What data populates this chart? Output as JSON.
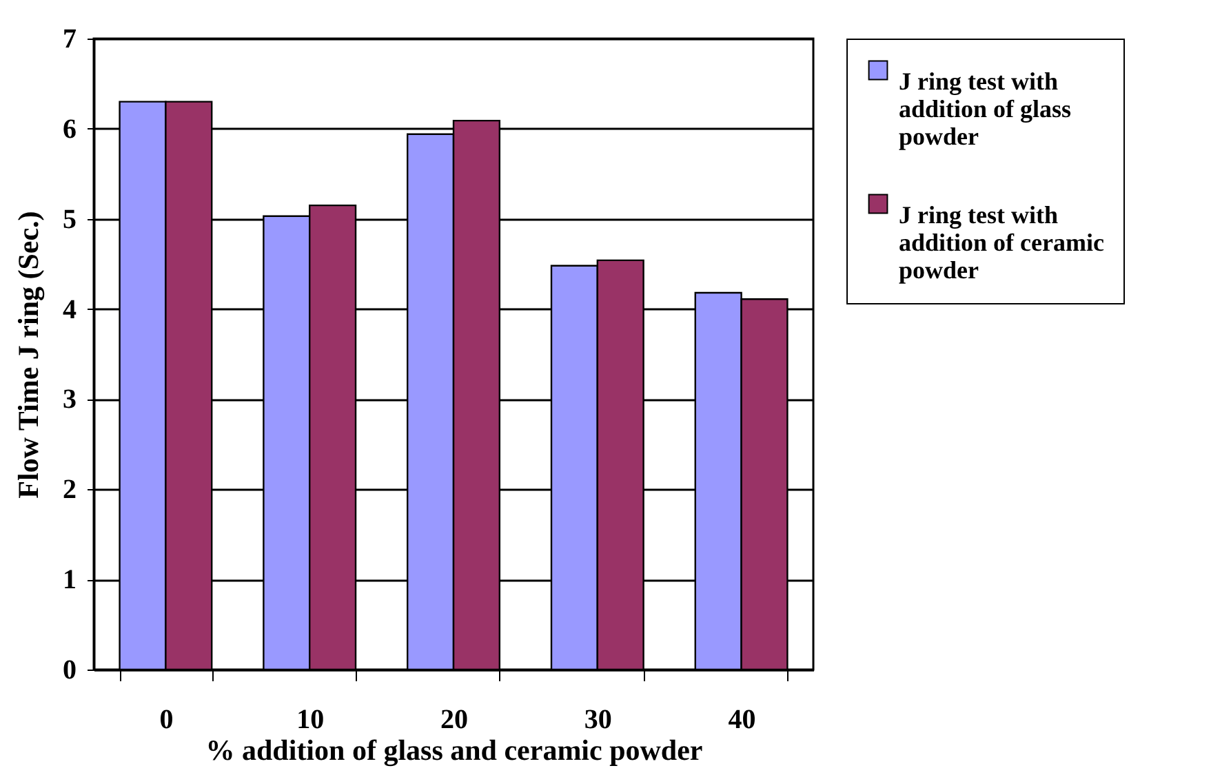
{
  "chart_data": {
    "type": "bar",
    "xlabel": "% addition of glass and ceramic powder",
    "ylabel": "Flow Time J ring (Sec.)",
    "categories": [
      "0",
      "10",
      "20",
      "30",
      "40"
    ],
    "series": [
      {
        "name": "J ring test with addition of glass powder",
        "color": "#9999ff",
        "values": [
          6.3,
          5.03,
          5.94,
          4.48,
          4.18
        ]
      },
      {
        "name": "J ring test with addition of ceramic powder",
        "color": "#993366",
        "values": [
          6.3,
          5.15,
          6.09,
          4.54,
          4.11
        ]
      }
    ],
    "ylim": [
      0,
      7
    ],
    "yticks": [
      0,
      1,
      2,
      3,
      4,
      5,
      6,
      7
    ],
    "grid": "y",
    "legend": "right"
  }
}
